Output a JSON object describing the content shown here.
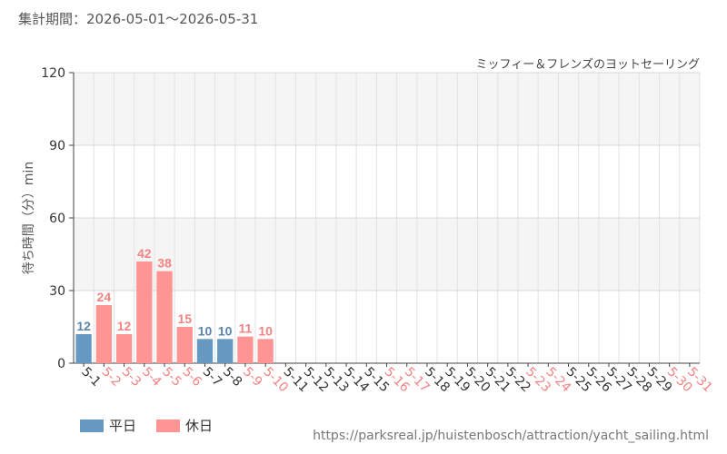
{
  "header": {
    "period_label": "集計期間：2026-05-01～2026-05-31",
    "attraction": "ミッフィー＆フレンズのヨットセーリング"
  },
  "legend": {
    "weekday_label": "平日",
    "holiday_label": "休日"
  },
  "colors": {
    "weekday": "#6699c2",
    "holiday": "#ff9494",
    "weekday_text": "#5b85ab",
    "holiday_text": "#f28383",
    "band": "#f5f5f5",
    "grid": "#e2e2e2"
  },
  "source_url": "https://parksreal.jp/huistenbosch/attraction/yacht_sailing.html",
  "chart_data": {
    "type": "bar",
    "ylabel": "待ち時間（分）min",
    "ylim": [
      0,
      120
    ],
    "yticks": [
      0,
      30,
      60,
      90,
      120
    ],
    "grid": true,
    "legend_position": "bottom-left",
    "categories": [
      "5-1",
      "5-2",
      "5-3",
      "5-4",
      "5-5",
      "5-6",
      "5-7",
      "5-8",
      "5-9",
      "5-10",
      "5-11",
      "5-12",
      "5-13",
      "5-14",
      "5-15",
      "5-16",
      "5-17",
      "5-18",
      "5-19",
      "5-20",
      "5-21",
      "5-22",
      "5-23",
      "5-24",
      "5-25",
      "5-26",
      "5-27",
      "5-28",
      "5-29",
      "5-30",
      "5-31"
    ],
    "day_type": [
      "平日",
      "休日",
      "休日",
      "休日",
      "休日",
      "休日",
      "平日",
      "平日",
      "休日",
      "休日",
      "平日",
      "平日",
      "平日",
      "平日",
      "平日",
      "休日",
      "休日",
      "平日",
      "平日",
      "平日",
      "平日",
      "平日",
      "休日",
      "休日",
      "平日",
      "平日",
      "平日",
      "平日",
      "平日",
      "休日",
      "休日"
    ],
    "values": [
      12,
      24,
      12,
      42,
      38,
      15,
      10,
      10,
      11,
      10,
      null,
      null,
      null,
      null,
      null,
      null,
      null,
      null,
      null,
      null,
      null,
      null,
      null,
      null,
      null,
      null,
      null,
      null,
      null,
      null,
      null
    ]
  }
}
